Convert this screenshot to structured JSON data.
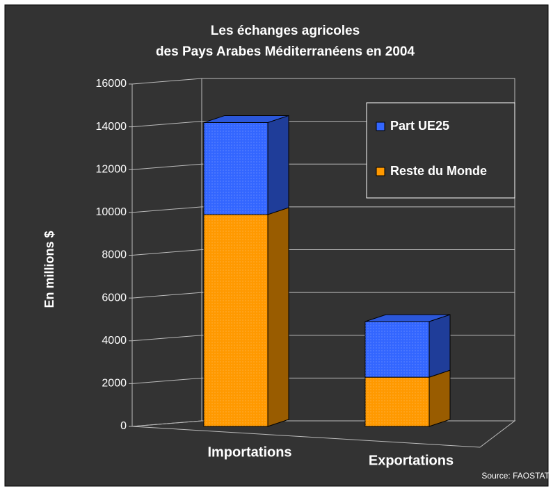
{
  "chart_data": {
    "type": "bar3d-stacked",
    "title": [
      "Les échanges agricoles",
      "des Pays Arabes Méditerranéens en 2004"
    ],
    "y_label": "En millions $",
    "source": "Source: FAOSTAT",
    "categories": [
      "Importations",
      "Exportations"
    ],
    "series": [
      {
        "name": "Reste du Monde",
        "color": "#ff9900",
        "values": [
          9900,
          2300
        ]
      },
      {
        "name": "Part UE25",
        "color": "#3366ff",
        "values": [
          4300,
          2600
        ]
      }
    ],
    "ylim": [
      0,
      16000
    ],
    "yticks": [
      0,
      2000,
      4000,
      6000,
      8000,
      10000,
      12000,
      14000,
      16000
    ],
    "grid": true
  }
}
